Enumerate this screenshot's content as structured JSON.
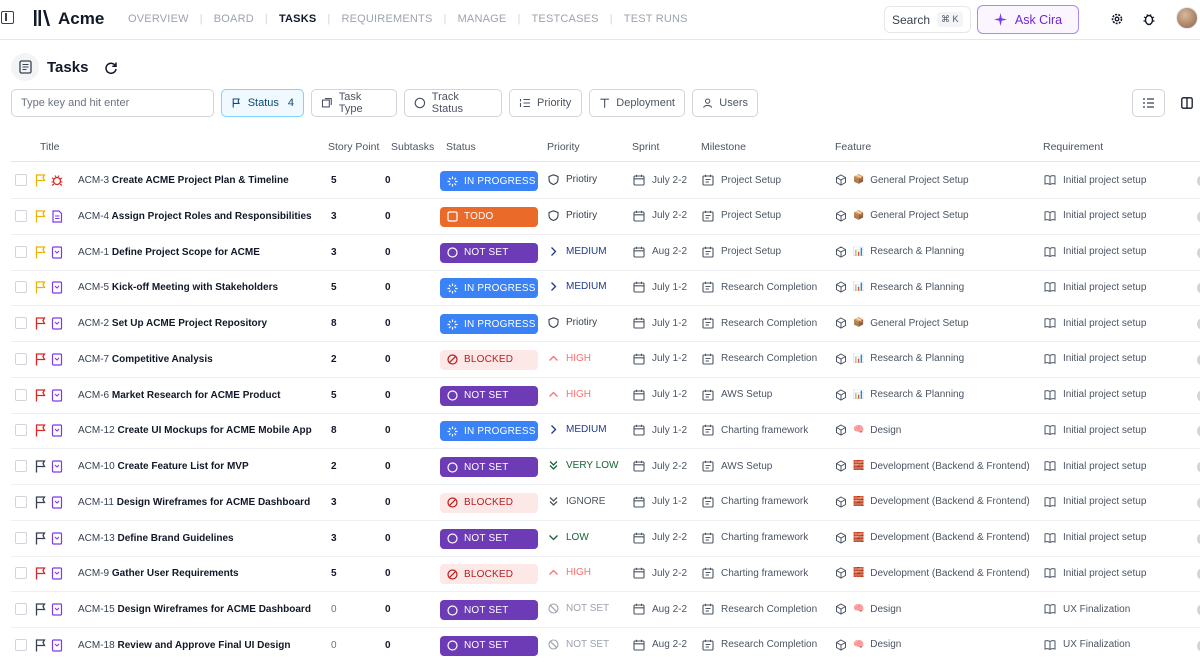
{
  "app": {
    "name": "Acme"
  },
  "nav": [
    {
      "label": "OVERVIEW",
      "active": false
    },
    {
      "label": "BOARD",
      "active": false
    },
    {
      "label": "TASKS",
      "active": true
    },
    {
      "label": "REQUIREMENTS",
      "active": false
    },
    {
      "label": "MANAGE",
      "active": false
    },
    {
      "label": "TESTCASES",
      "active": false
    },
    {
      "label": "TEST RUNS",
      "active": false
    }
  ],
  "header_actions": {
    "search_label": "Search",
    "search_shortcut": "⌘ K",
    "ask_label": "Ask Cira"
  },
  "page": {
    "title": "Tasks"
  },
  "filters": {
    "search_placeholder": "Type key and hit enter",
    "status": {
      "label": "Status",
      "count": "4"
    },
    "task_type": "Task Type",
    "track_status": "Track Status",
    "priority": "Priority",
    "deployment": "Deployment",
    "users": "Users"
  },
  "columns": {
    "title": "Title",
    "story_point": "Story Point",
    "subtasks": "Subtasks",
    "status": "Status",
    "priority": "Priority",
    "sprint": "Sprint",
    "milestone": "Milestone",
    "feature": "Feature",
    "requirement": "Requirement"
  },
  "colors": {
    "in_progress": "#3b82f6",
    "todo": "#ea6a2a",
    "not_set": "#6d3bb5",
    "blocked": "#fde8e8",
    "accent": "#7c3aed"
  },
  "rows": [
    {
      "flag": "yellow",
      "type": "bug",
      "key": "ACM-3",
      "title": "Create ACME Project Plan & Timeline",
      "sp": "5",
      "subtasks": "0",
      "status": "IN PROGRESS",
      "status_kind": "inprogress",
      "priority": "Priotiry",
      "prio_kind": "shield",
      "sprint": "July 2-2",
      "milestone": "Project Setup",
      "feature_emoji": "📦",
      "feature": "General Project Setup",
      "requirement": "Initial project setup"
    },
    {
      "flag": "yellow",
      "type": "doc",
      "key": "ACM-4",
      "title": "Assign Project Roles and Responsibilities",
      "sp": "3",
      "subtasks": "0",
      "status": "TODO",
      "status_kind": "todo",
      "priority": "Priotiry",
      "prio_kind": "shield",
      "sprint": "July 2-2",
      "milestone": "Project Setup",
      "feature_emoji": "📦",
      "feature": "General Project Setup",
      "requirement": "Initial project setup"
    },
    {
      "flag": "yellow",
      "type": "story",
      "key": "ACM-1",
      "title": "Define Project Scope for ACME",
      "sp": "3",
      "subtasks": "0",
      "status": "NOT SET",
      "status_kind": "notset",
      "priority": "MEDIUM",
      "prio_kind": "medium",
      "sprint": "Aug 2-2",
      "milestone": "Project Setup",
      "feature_emoji": "📊",
      "feature": "Research & Planning",
      "requirement": "Initial project setup"
    },
    {
      "flag": "yellow",
      "type": "story",
      "key": "ACM-5",
      "title": "Kick-off Meeting with Stakeholders",
      "sp": "5",
      "subtasks": "0",
      "status": "IN PROGRESS",
      "status_kind": "inprogress",
      "priority": "MEDIUM",
      "prio_kind": "medium",
      "sprint": "July 1-2",
      "milestone": "Research Completion",
      "feature_emoji": "📊",
      "feature": "Research & Planning",
      "requirement": "Initial project setup"
    },
    {
      "flag": "red",
      "type": "story",
      "key": "ACM-2",
      "title": "Set Up ACME Project Repository",
      "sp": "8",
      "subtasks": "0",
      "status": "IN PROGRESS",
      "status_kind": "inprogress",
      "priority": "Priotiry",
      "prio_kind": "shield",
      "sprint": "July 1-2",
      "milestone": "Research Completion",
      "feature_emoji": "📦",
      "feature": "General Project Setup",
      "requirement": "Initial project setup"
    },
    {
      "flag": "red",
      "type": "story",
      "key": "ACM-7",
      "title": "Competitive Analysis",
      "sp": "2",
      "subtasks": "0",
      "status": "BLOCKED",
      "status_kind": "blocked",
      "priority": "HIGH",
      "prio_kind": "high",
      "sprint": "July 1-2",
      "milestone": "Research Completion",
      "feature_emoji": "📊",
      "feature": "Research & Planning",
      "requirement": "Initial project setup"
    },
    {
      "flag": "red",
      "type": "story",
      "key": "ACM-6",
      "title": "Market Research for ACME Product",
      "sp": "5",
      "subtasks": "0",
      "status": "NOT SET",
      "status_kind": "notset",
      "priority": "HIGH",
      "prio_kind": "high",
      "sprint": "July 1-2",
      "milestone": "AWS Setup",
      "feature_emoji": "📊",
      "feature": "Research & Planning",
      "requirement": "Initial project setup"
    },
    {
      "flag": "red",
      "type": "story",
      "key": "ACM-12",
      "title": "Create UI Mockups for ACME Mobile App",
      "sp": "8",
      "subtasks": "0",
      "status": "IN PROGRESS",
      "status_kind": "inprogress",
      "priority": "MEDIUM",
      "prio_kind": "medium",
      "sprint": "July 1-2",
      "milestone": "Charting framework",
      "feature_emoji": "🧠",
      "feature": "Design",
      "requirement": "Initial project setup"
    },
    {
      "flag": "dark",
      "type": "story",
      "key": "ACM-10",
      "title": "Create Feature List for MVP",
      "sp": "2",
      "subtasks": "0",
      "status": "NOT SET",
      "status_kind": "notset",
      "priority": "VERY LOW",
      "prio_kind": "verylow",
      "sprint": "July 2-2",
      "milestone": "AWS Setup",
      "feature_emoji": "🧱",
      "feature": "Development (Backend & Frontend)",
      "requirement": "Initial project setup"
    },
    {
      "flag": "dark",
      "type": "story",
      "key": "ACM-11",
      "title": "Design Wireframes for ACME Dashboard",
      "sp": "3",
      "subtasks": "0",
      "status": "BLOCKED",
      "status_kind": "blocked",
      "priority": "IGNORE",
      "prio_kind": "ignore",
      "sprint": "July 1-2",
      "milestone": "Charting framework",
      "feature_emoji": "🧱",
      "feature": "Development (Backend & Frontend)",
      "requirement": "Initial project setup"
    },
    {
      "flag": "dark",
      "type": "story",
      "key": "ACM-13",
      "title": "Define Brand Guidelines",
      "sp": "3",
      "subtasks": "0",
      "status": "NOT SET",
      "status_kind": "notset",
      "priority": "LOW",
      "prio_kind": "low",
      "sprint": "July 2-2",
      "milestone": "Charting framework",
      "feature_emoji": "🧱",
      "feature": "Development (Backend & Frontend)",
      "requirement": "Initial project setup"
    },
    {
      "flag": "red",
      "type": "story",
      "key": "ACM-9",
      "title": "Gather User Requirements",
      "sp": "5",
      "subtasks": "0",
      "status": "BLOCKED",
      "status_kind": "blocked",
      "priority": "HIGH",
      "prio_kind": "high",
      "sprint": "July 2-2",
      "milestone": "Charting framework",
      "feature_emoji": "🧱",
      "feature": "Development (Backend & Frontend)",
      "requirement": "Initial project setup"
    },
    {
      "flag": "dark",
      "type": "story",
      "key": "ACM-15",
      "title": "Design Wireframes for ACME Dashboard",
      "sp": "0",
      "subtasks": "0",
      "status": "NOT SET",
      "status_kind": "notset",
      "priority": "NOT SET",
      "prio_kind": "notset",
      "sprint": "Aug 2-2",
      "milestone": "Research Completion",
      "feature_emoji": "🧠",
      "feature": "Design",
      "requirement": "UX Finalization"
    },
    {
      "flag": "dark",
      "type": "story",
      "key": "ACM-18",
      "title": "Review and Approve Final UI Design",
      "sp": "0",
      "subtasks": "0",
      "status": "NOT SET",
      "status_kind": "notset",
      "priority": "NOT SET",
      "prio_kind": "notset",
      "sprint": "Aug 2-2",
      "milestone": "Research Completion",
      "feature_emoji": "🧠",
      "feature": "Design",
      "requirement": "UX Finalization"
    }
  ]
}
